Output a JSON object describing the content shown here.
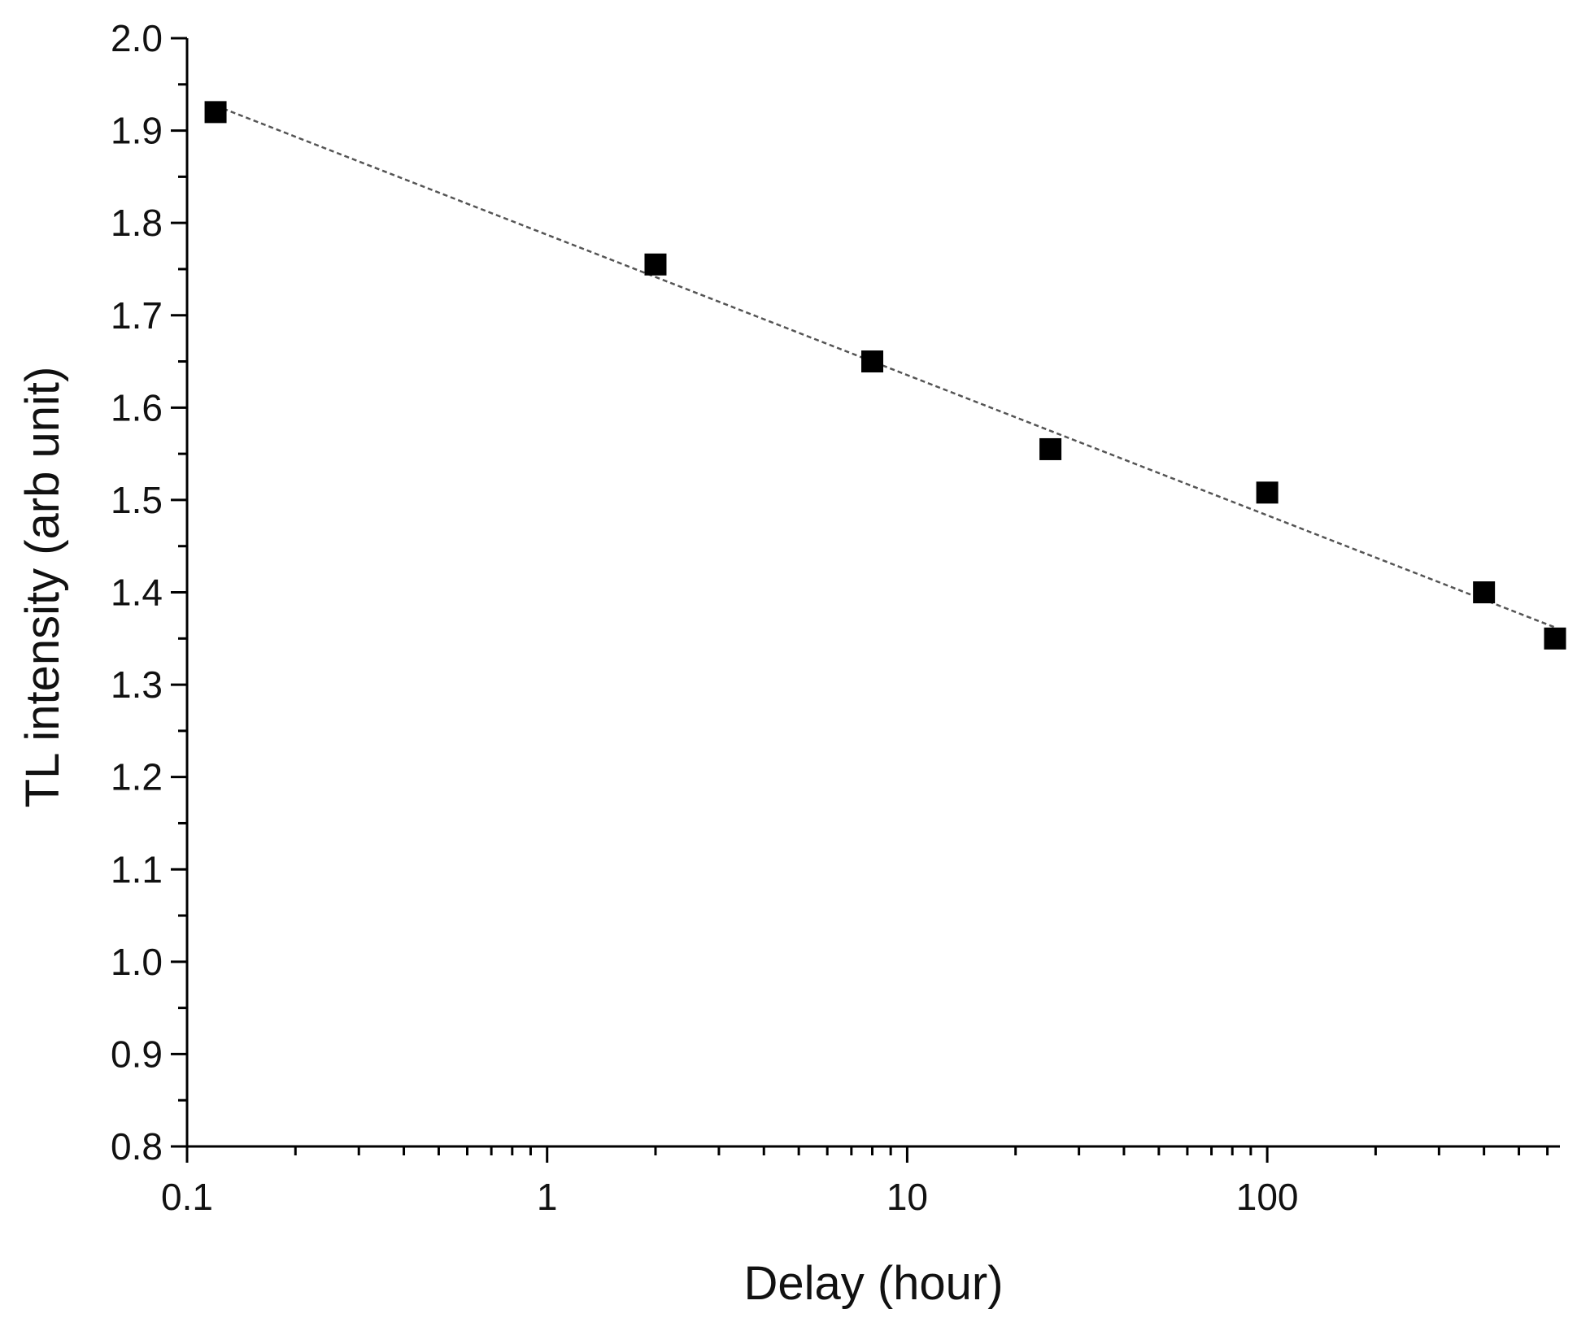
{
  "chart_data": {
    "type": "scatter",
    "title": "",
    "xlabel": "Delay (hour)",
    "ylabel": "TL intensity (arb unit)",
    "x_scale": "log",
    "xlim": [
      0.1,
      650
    ],
    "ylim": [
      0.8,
      2.0
    ],
    "x_ticks": [
      0.1,
      1,
      10,
      100
    ],
    "x_tick_labels": [
      "0.1",
      "1",
      "10",
      "100"
    ],
    "y_ticks": [
      0.8,
      0.9,
      1.0,
      1.1,
      1.2,
      1.3,
      1.4,
      1.5,
      1.6,
      1.7,
      1.8,
      1.9,
      2.0
    ],
    "y_tick_labels": [
      "0.8",
      "0.9",
      "1.0",
      "1.1",
      "1.2",
      "1.3",
      "1.4",
      "1.5",
      "1.6",
      "1.7",
      "1.8",
      "1.9",
      "2.0"
    ],
    "grid": false,
    "series": [
      {
        "marker": "square",
        "color": "#000000",
        "x": [
          0.12,
          2,
          8,
          25,
          100,
          400,
          630
        ],
        "y": [
          1.92,
          1.755,
          1.65,
          1.555,
          1.508,
          1.4,
          1.35
        ]
      }
    ],
    "fit_line": {
      "style": "dashed",
      "color": "#555555",
      "x": [
        0.12,
        630
      ],
      "y": [
        1.927,
        1.362
      ]
    }
  }
}
